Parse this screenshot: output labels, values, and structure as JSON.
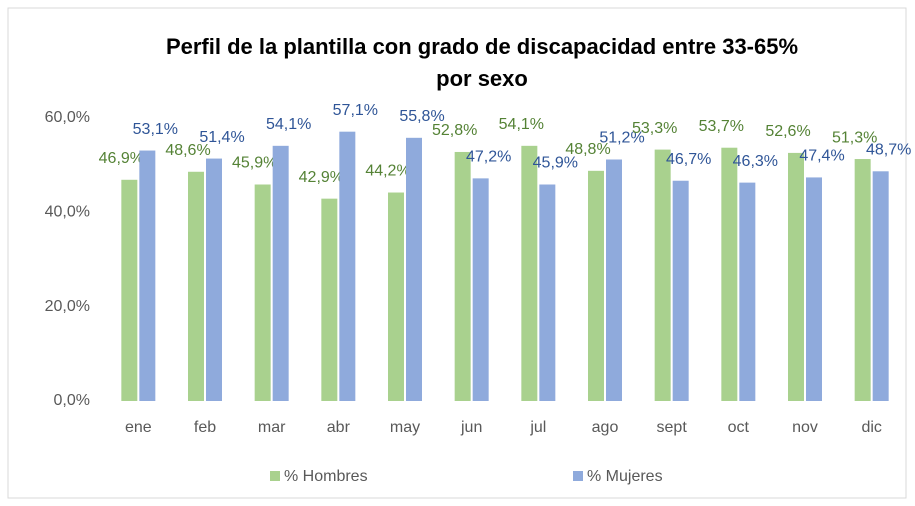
{
  "chart_data": {
    "type": "bar",
    "title": [
      "Perfil de la plantilla con grado de discapacidad entre 33-65%",
      "por sexo"
    ],
    "categories": [
      "ene",
      "feb",
      "mar",
      "abr",
      "may",
      "jun",
      "jul",
      "ago",
      "sept",
      "oct",
      "nov",
      "dic"
    ],
    "series": [
      {
        "name": "% Hombres",
        "color": "#a9d18e",
        "label_color": "#548235",
        "values": [
          46.9,
          48.6,
          45.9,
          42.9,
          44.2,
          52.8,
          54.1,
          48.8,
          53.3,
          53.7,
          52.6,
          51.3
        ],
        "value_labels": [
          "46,9%",
          "48,6%",
          "45,9%",
          "42,9%",
          "44,2%",
          "52,8%",
          "54,1%",
          "48,8%",
          "53,3%",
          "53,7%",
          "52,6%",
          "51,3%"
        ]
      },
      {
        "name": "% Mujeres",
        "color": "#8faadc",
        "label_color": "#2f5597",
        "values": [
          53.1,
          51.4,
          54.1,
          57.1,
          55.8,
          47.2,
          45.9,
          51.2,
          46.7,
          46.3,
          47.4,
          48.7
        ],
        "value_labels": [
          "53,1%",
          "51,4%",
          "54,1%",
          "57,1%",
          "55,8%",
          "47,2%",
          "45,9%",
          "51,2%",
          "46,7%",
          "46,3%",
          "47,4%",
          "48,7%"
        ]
      }
    ],
    "ylim": [
      0,
      60
    ],
    "yticks": [
      {
        "value": 0,
        "label": "0,0%"
      },
      {
        "value": 20,
        "label": "20,0%"
      },
      {
        "value": 40,
        "label": "40,0%"
      },
      {
        "value": 60,
        "label": "60,0%"
      }
    ],
    "grid": false,
    "legend": "bottom"
  }
}
